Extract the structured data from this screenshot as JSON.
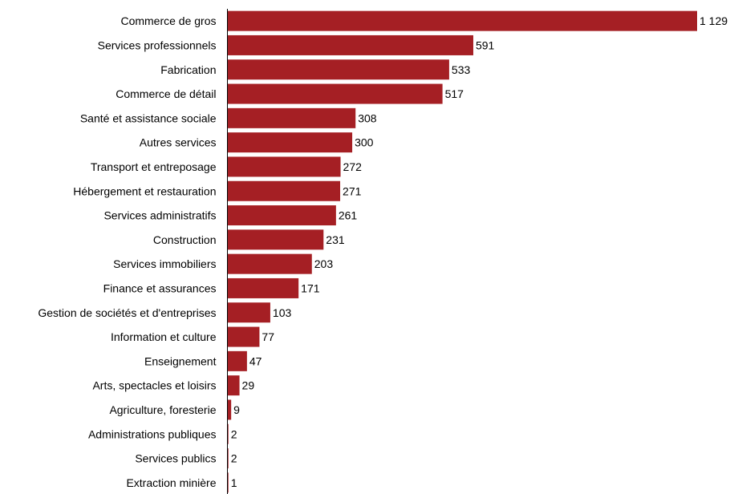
{
  "chart_data": {
    "type": "bar",
    "orientation": "horizontal",
    "categories": [
      "Commerce de gros",
      "Services professionnels",
      "Fabrication",
      "Commerce de détail",
      "Santé et assistance sociale",
      "Autres services",
      "Transport et entreposage",
      "Hébergement et restauration",
      "Services administratifs",
      "Construction",
      "Services immobiliers",
      "Finance et assurances",
      "Gestion de sociétés et d'entreprises",
      "Information et culture",
      "Enseignement",
      "Arts, spectacles et loisirs",
      "Agriculture, foresterie",
      "Administrations publiques",
      "Services publics",
      "Extraction minière"
    ],
    "values": [
      1129,
      591,
      533,
      517,
      308,
      300,
      272,
      271,
      261,
      231,
      203,
      171,
      103,
      77,
      47,
      29,
      9,
      2,
      2,
      1
    ],
    "value_labels": [
      "1 129",
      "591",
      "533",
      "517",
      "308",
      "300",
      "272",
      "271",
      "261",
      "231",
      "203",
      "171",
      "103",
      "77",
      "47",
      "29",
      "9",
      "2",
      "2",
      "1"
    ],
    "bar_color": "#a51f24",
    "xlim": [
      0,
      1129
    ],
    "grid": false,
    "legend": "none"
  }
}
